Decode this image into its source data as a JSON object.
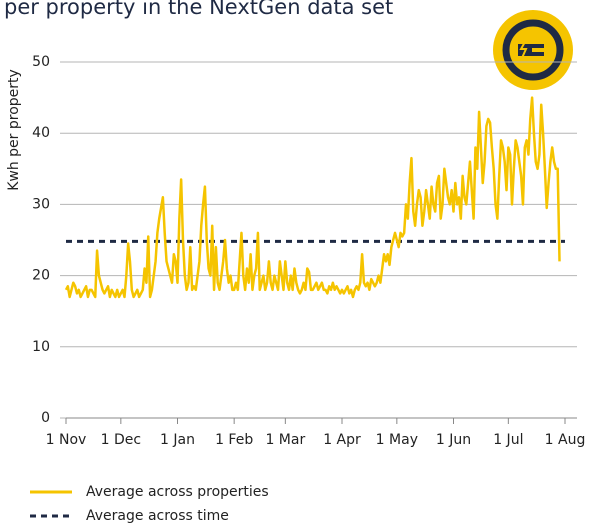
{
  "chart_data": {
    "type": "line",
    "title": "per property in the NextGen data set",
    "y_label": "Kwh per property",
    "categories": [
      "1 Nov",
      null,
      null,
      null,
      null,
      null,
      null,
      null,
      null,
      null,
      null,
      null,
      null,
      null,
      null,
      null,
      null,
      null,
      null,
      null,
      null,
      null,
      null,
      null,
      null,
      null,
      null,
      null,
      null,
      null,
      "1 Dec",
      null,
      null,
      null,
      null,
      null,
      null,
      null,
      null,
      null,
      null,
      null,
      null,
      null,
      null,
      null,
      null,
      null,
      null,
      null,
      null,
      null,
      null,
      null,
      null,
      null,
      null,
      null,
      null,
      null,
      null,
      "1 Jan",
      null,
      null,
      null,
      null,
      null,
      null,
      null,
      null,
      null,
      null,
      null,
      null,
      null,
      null,
      null,
      null,
      null,
      null,
      null,
      null,
      null,
      null,
      null,
      null,
      null,
      null,
      null,
      null,
      null,
      null,
      "1 Feb",
      null,
      null,
      null,
      null,
      null,
      null,
      null,
      null,
      null,
      null,
      null,
      null,
      null,
      null,
      null,
      null,
      null,
      null,
      null,
      null,
      null,
      null,
      null,
      null,
      null,
      null,
      null,
      "1 Mar",
      null,
      null,
      null,
      null,
      null,
      null,
      null,
      null,
      null,
      null,
      null,
      null,
      null,
      null,
      null,
      null,
      null,
      null,
      null,
      null,
      null,
      null,
      null,
      null,
      null,
      null,
      null,
      null,
      null,
      null,
      "1 Apr",
      null,
      null,
      null,
      null,
      null,
      null,
      null,
      null,
      null,
      null,
      null,
      null,
      null,
      null,
      null,
      null,
      null,
      null,
      null,
      null,
      null,
      null,
      null,
      null,
      null,
      null,
      null,
      null,
      null,
      "1 May",
      null,
      null,
      null,
      null,
      null,
      null,
      null,
      null,
      null,
      null,
      null,
      null,
      null,
      null,
      null,
      null,
      null,
      null,
      null,
      null,
      null,
      null,
      null,
      null,
      null,
      null,
      null,
      null,
      null,
      null,
      "1 Jun",
      null,
      null,
      null,
      null,
      null,
      null,
      null,
      null,
      null,
      null,
      null,
      null,
      null,
      null,
      null,
      null,
      null,
      null,
      null,
      null,
      null,
      null,
      null,
      null,
      null,
      null,
      null,
      null,
      null,
      "1 Jul",
      null,
      null,
      null,
      null,
      null,
      null,
      null,
      null,
      null,
      null,
      null,
      null,
      null,
      null,
      null,
      null,
      null,
      null,
      null,
      null,
      null,
      null,
      null,
      null,
      null,
      null,
      null,
      null,
      null,
      null,
      "1 Aug"
    ],
    "series": [
      {
        "name": "Average across properties",
        "color": "#f5c400",
        "values": [
          18,
          18.5,
          17,
          18,
          19,
          18.5,
          17.5,
          18,
          17,
          17.5,
          18,
          18.5,
          17,
          18,
          18,
          17.5,
          17,
          23.5,
          20,
          19,
          18,
          17.5,
          18,
          18.5,
          17,
          18,
          17.5,
          17,
          18,
          17,
          17.5,
          18,
          17,
          20,
          24.5,
          22,
          18,
          17,
          17.5,
          18,
          17,
          17.5,
          18,
          21,
          19,
          25.5,
          17,
          18,
          20,
          22,
          26,
          28,
          29.5,
          31,
          26,
          22,
          21,
          20,
          19,
          23,
          22,
          19,
          28,
          33.5,
          25,
          20,
          18,
          19,
          24,
          18,
          18.5,
          18,
          20,
          22,
          27,
          30,
          32.5,
          25,
          21,
          20,
          27,
          18,
          24,
          19,
          18,
          20,
          22,
          25,
          21,
          19,
          20,
          18,
          18,
          19,
          18,
          22,
          26,
          20,
          18,
          21,
          19,
          23,
          18,
          20,
          21,
          26,
          18,
          19,
          20,
          18,
          19,
          22,
          19,
          18,
          20,
          19,
          18,
          22,
          20,
          18,
          22,
          19,
          18,
          20,
          18,
          21,
          19,
          18,
          17.5,
          18,
          19,
          18,
          21,
          20.5,
          18,
          18,
          18.5,
          19,
          18,
          18.5,
          19,
          18,
          18,
          17.5,
          18.5,
          18,
          19,
          18,
          18.5,
          18,
          17.5,
          18,
          17.5,
          18,
          18.5,
          17.5,
          18,
          17,
          18,
          18.5,
          18,
          19,
          23,
          19,
          18.5,
          19,
          18,
          19.5,
          19,
          18.5,
          19,
          20,
          19,
          21,
          23,
          22,
          23,
          21.5,
          24,
          25,
          26,
          25,
          24,
          26,
          25.5,
          26,
          30,
          28,
          33,
          36.5,
          29,
          27,
          30,
          32,
          31,
          27,
          29,
          32,
          30,
          28,
          32.5,
          30,
          29,
          33,
          34,
          28,
          30,
          35,
          33,
          31,
          30,
          32,
          29,
          33,
          30,
          31,
          28,
          34,
          31,
          30,
          33,
          36,
          32,
          28,
          38,
          35,
          43,
          38,
          33,
          36,
          41,
          42,
          41.5,
          38,
          35,
          30,
          28,
          34,
          39,
          38,
          36,
          32,
          38,
          37,
          30,
          35,
          39,
          38,
          36,
          34,
          30,
          38,
          39,
          37,
          42,
          45,
          40,
          36,
          35,
          37,
          44,
          40,
          35,
          29.5,
          33,
          36,
          38,
          36,
          35,
          35,
          22,
          null,
          null,
          null
        ]
      }
    ],
    "reference_line": {
      "name": "Average across time",
      "value": 24.8,
      "color": "#1f2a44"
    },
    "ylim": [
      0,
      50
    ],
    "yticks": [
      0,
      10,
      20,
      30,
      40,
      50
    ],
    "grid": true
  }
}
